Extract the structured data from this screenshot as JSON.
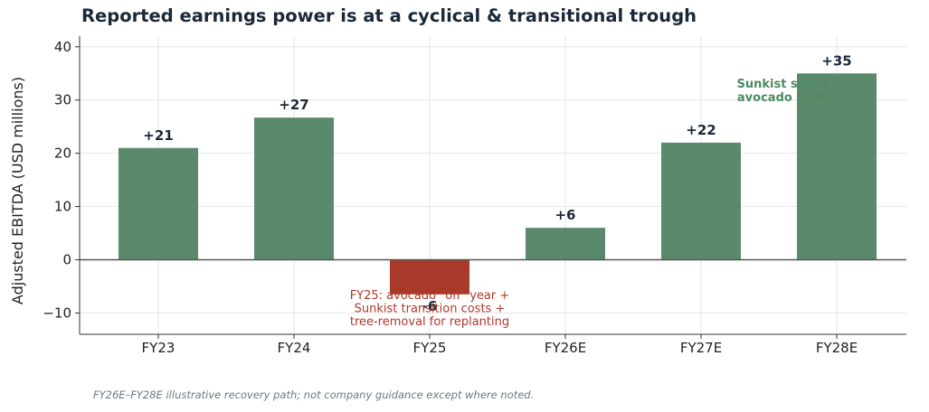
{
  "title": "Reported earnings power is at a cyclical & transitional trough",
  "footnote": "FY26E–FY28E illustrative recovery path; not company guidance except where noted.",
  "colors": {
    "positive": "#5a8a6b",
    "negative": "#a83a2a",
    "grid": "#e6e6e6",
    "zero_line": "#555555",
    "title": "#1b2838"
  },
  "chart_data": {
    "type": "bar",
    "title": "Reported earnings power is at a cyclical & transitional trough",
    "xlabel": "",
    "ylabel": "Adjusted EBITDA (USD millions)",
    "categories": [
      "FY23",
      "FY24",
      "FY25",
      "FY26E",
      "FY27E",
      "FY28E"
    ],
    "values": [
      21,
      26.7,
      -6.5,
      6,
      22,
      35
    ],
    "data_labels": [
      "+21",
      "+27",
      "-6",
      "+6",
      "+22",
      "+35"
    ],
    "ylim": [
      -14,
      42
    ],
    "yticks": [
      -10,
      0,
      10,
      20,
      30,
      40
    ],
    "ytick_labels": [
      "−10",
      "0",
      "10",
      "20",
      "30",
      "40"
    ],
    "grid": true,
    "annotations": [
      {
        "lines": [
          "FY25: avocado \"off\" year +",
          "Sunkist transition costs +",
          "tree-removal for replanting"
        ],
        "category": "FY25",
        "style": "negative"
      },
      {
        "lines": [
          "Sunkist saves",
          "avocado & RE"
        ],
        "category": "FY28E",
        "style": "positive"
      }
    ]
  }
}
